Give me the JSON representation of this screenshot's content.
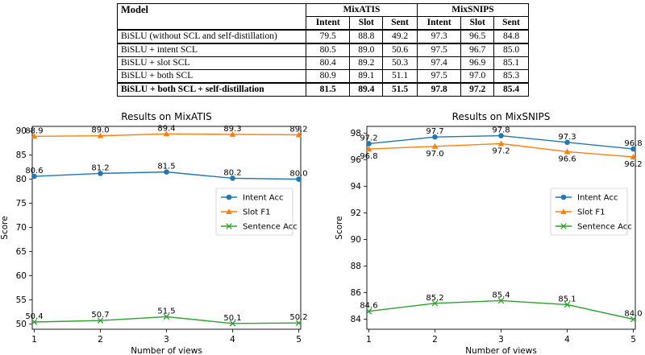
{
  "table": {
    "header": {
      "model": "Model",
      "groups": [
        "MixATIS",
        "MixSNIPS"
      ],
      "subcols": [
        "Intent",
        "Slot",
        "Sent",
        "Intent",
        "Slot",
        "Sent"
      ]
    },
    "rows": [
      {
        "model": "BiSLU (without SCL and self-distillation)",
        "values": [
          "79.5",
          "88.8",
          "49.2",
          "97.3",
          "96.5",
          "84.8"
        ]
      },
      {
        "model": "BiSLU + intent SCL",
        "values": [
          "80.5",
          "89.0",
          "50.6",
          "97.5",
          "96.7",
          "85.0"
        ]
      },
      {
        "model": "BiSLU + slot SCL",
        "values": [
          "80.4",
          "89.2",
          "50.3",
          "97.4",
          "96.9",
          "85.1"
        ]
      },
      {
        "model": "BiSLU + both SCL",
        "values": [
          "80.9",
          "89.1",
          "51.1",
          "97.5",
          "97.0",
          "85.3"
        ]
      },
      {
        "model": "BiSLU + both SCL + self-distillation",
        "values": [
          "81.5",
          "89.4",
          "51.5",
          "97.8",
          "97.2",
          "85.4"
        ]
      }
    ]
  },
  "chart_data": [
    {
      "type": "line",
      "title": "Results on MixATIS",
      "xlabel": "Number of views",
      "ylabel": "Score",
      "x": [
        1,
        2,
        3,
        4,
        5
      ],
      "xticks": [
        "1",
        "2",
        "3",
        "4",
        "5"
      ],
      "xlim": [
        0.97,
        5.03
      ],
      "ylim": [
        48.9,
        90.95
      ],
      "yticks": [
        50,
        55,
        60,
        65,
        70,
        75,
        80,
        85,
        90
      ],
      "legend": "center-right",
      "series": [
        {
          "name": "Intent Acc",
          "color": "#1f77b4",
          "marker": "circle",
          "values": [
            80.6,
            81.2,
            81.5,
            80.2,
            80.0
          ],
          "labels": [
            "80.6",
            "81.2",
            "81.5",
            "80.2",
            "80.0"
          ]
        },
        {
          "name": "Slot F1",
          "color": "#ff7f0e",
          "marker": "triangle",
          "values": [
            88.9,
            89.0,
            89.4,
            89.3,
            89.2
          ],
          "labels": [
            "88.9",
            "89.0",
            "89.4",
            "89.3",
            "89.2"
          ]
        },
        {
          "name": "Sentence Acc",
          "color": "#2ca02c",
          "marker": "x",
          "values": [
            50.4,
            50.7,
            51.5,
            50.1,
            50.2
          ],
          "labels": [
            "50.4",
            "50.7",
            "51.5",
            "50.1",
            "50.2"
          ]
        }
      ]
    },
    {
      "type": "line",
      "title": "Results on MixSNIPS",
      "xlabel": "Number of views",
      "ylabel": "Score",
      "x": [
        1,
        2,
        3,
        4,
        5
      ],
      "xticks": [
        "1",
        "2",
        "3",
        "4",
        "5"
      ],
      "xlim": [
        0.97,
        5.03
      ],
      "ylim": [
        83.25,
        98.5
      ],
      "yticks": [
        84,
        86,
        88,
        90,
        92,
        94,
        96,
        98
      ],
      "legend": "center-right",
      "series": [
        {
          "name": "Intent Acc",
          "color": "#1f77b4",
          "marker": "circle",
          "values": [
            97.2,
            97.7,
            97.8,
            97.3,
            96.8
          ],
          "labels": [
            "97.2",
            "97.7",
            "97.8",
            "97.3",
            "96.8"
          ]
        },
        {
          "name": "Slot F1",
          "color": "#ff7f0e",
          "marker": "triangle",
          "values": [
            96.8,
            97.0,
            97.2,
            96.6,
            96.2
          ],
          "labels": [
            "96.8",
            "97.0",
            "97.2",
            "96.6",
            "96.2"
          ]
        },
        {
          "name": "Sentence Acc",
          "color": "#2ca02c",
          "marker": "x",
          "values": [
            84.6,
            85.2,
            85.4,
            85.1,
            84.0
          ],
          "labels": [
            "84.6",
            "85.2",
            "85.4",
            "85.1",
            "84.0"
          ]
        }
      ]
    }
  ]
}
